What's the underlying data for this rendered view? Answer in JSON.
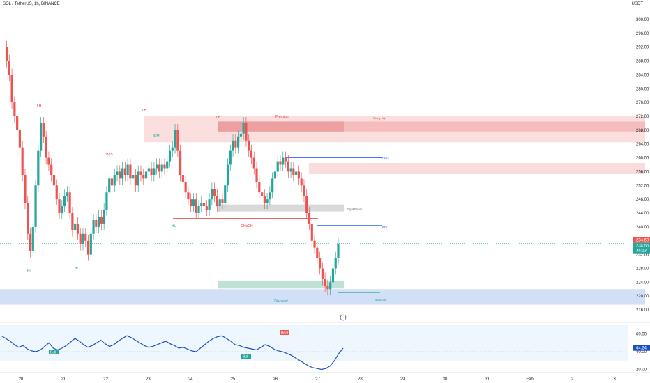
{
  "header": {
    "symbol": "SOL / TetherUS, 1h, BINANCE",
    "currency": "USDT"
  },
  "chart_data": {
    "type": "candlestick",
    "symbol": "SOL / TetherUS",
    "interval": "1h",
    "exchange": "BINANCE",
    "currency": "USDT",
    "ylim": [
      214,
      302
    ],
    "yticks": [
      "300.00",
      "296.00",
      "292.00",
      "288.00",
      "284.00",
      "280.00",
      "276.00",
      "272.00",
      "268.00",
      "264.00",
      "260.00",
      "256.00",
      "252.00",
      "248.00",
      "244.00",
      "240.00",
      "236.00",
      "232.00",
      "228.00",
      "224.00",
      "220.00",
      "216.00"
    ],
    "x_days": [
      "20",
      "21",
      "22",
      "23",
      "24",
      "25",
      "26",
      "27",
      "28",
      "29",
      "30",
      "31",
      "Feb",
      "2",
      "3"
    ],
    "x_range": [
      19.5,
      3.0
    ],
    "grid": false,
    "close_series": [
      [
        19.55,
        292
      ],
      [
        19.6,
        288
      ],
      [
        19.65,
        284
      ],
      [
        19.7,
        276
      ],
      [
        19.75,
        272
      ],
      [
        19.8,
        268
      ],
      [
        19.85,
        263
      ],
      [
        19.9,
        255
      ],
      [
        19.95,
        247
      ],
      [
        20.0,
        238
      ],
      [
        20.05,
        233
      ],
      [
        20.1,
        240
      ],
      [
        20.15,
        252
      ],
      [
        20.2,
        262
      ],
      [
        20.25,
        270
      ],
      [
        20.3,
        266
      ],
      [
        20.35,
        260
      ],
      [
        20.4,
        258
      ],
      [
        20.45,
        255
      ],
      [
        20.5,
        252
      ],
      [
        20.55,
        248
      ],
      [
        20.6,
        244
      ],
      [
        20.65,
        246
      ],
      [
        20.7,
        249
      ],
      [
        20.75,
        250
      ],
      [
        20.8,
        244
      ],
      [
        20.85,
        239
      ],
      [
        20.9,
        241
      ],
      [
        20.95,
        238
      ],
      [
        21.0,
        235
      ],
      [
        21.05,
        238
      ],
      [
        21.1,
        236
      ],
      [
        21.15,
        232
      ],
      [
        21.2,
        238
      ],
      [
        21.25,
        242
      ],
      [
        21.3,
        240
      ],
      [
        21.35,
        243
      ],
      [
        21.4,
        241
      ],
      [
        21.45,
        245
      ],
      [
        21.5,
        250
      ],
      [
        21.55,
        254
      ],
      [
        21.6,
        252
      ],
      [
        21.65,
        255
      ],
      [
        21.7,
        256
      ],
      [
        21.75,
        254
      ],
      [
        21.8,
        257
      ],
      [
        21.85,
        255
      ],
      [
        21.9,
        258
      ],
      [
        21.95,
        254
      ],
      [
        22.0,
        255
      ],
      [
        22.05,
        252
      ],
      [
        22.1,
        256
      ],
      [
        22.15,
        255
      ],
      [
        22.2,
        254
      ],
      [
        22.25,
        256
      ],
      [
        22.3,
        257
      ],
      [
        22.35,
        255
      ],
      [
        22.4,
        257
      ],
      [
        22.45,
        258
      ],
      [
        22.5,
        256
      ],
      [
        22.55,
        258
      ],
      [
        22.6,
        257
      ],
      [
        22.65,
        259
      ],
      [
        22.7,
        262
      ],
      [
        22.75,
        263
      ],
      [
        22.8,
        268
      ],
      [
        22.85,
        262
      ],
      [
        22.9,
        255
      ],
      [
        22.95,
        253
      ],
      [
        23.0,
        250
      ],
      [
        23.05,
        248
      ],
      [
        23.1,
        246
      ],
      [
        23.15,
        248
      ],
      [
        23.2,
        244
      ],
      [
        23.25,
        246
      ],
      [
        23.3,
        247
      ],
      [
        23.35,
        246
      ],
      [
        23.4,
        245
      ],
      [
        23.45,
        248
      ],
      [
        23.5,
        251
      ],
      [
        23.55,
        249
      ],
      [
        23.6,
        246
      ],
      [
        23.65,
        248
      ],
      [
        23.7,
        247
      ],
      [
        23.75,
        252
      ],
      [
        23.8,
        258
      ],
      [
        23.85,
        262
      ],
      [
        23.9,
        265
      ],
      [
        23.95,
        263
      ],
      [
        24.0,
        266
      ],
      [
        24.05,
        267
      ],
      [
        24.1,
        270
      ],
      [
        24.15,
        265
      ],
      [
        24.2,
        262
      ],
      [
        24.25,
        260
      ],
      [
        24.3,
        257
      ],
      [
        24.35,
        253
      ],
      [
        24.4,
        250
      ],
      [
        24.45,
        249
      ],
      [
        24.5,
        247
      ],
      [
        24.55,
        248
      ],
      [
        24.6,
        250
      ],
      [
        24.65,
        254
      ],
      [
        24.7,
        256
      ],
      [
        24.75,
        259
      ],
      [
        24.8,
        258
      ],
      [
        24.85,
        260
      ],
      [
        24.9,
        259
      ],
      [
        24.95,
        256
      ],
      [
        25.0,
        257
      ],
      [
        25.05,
        255
      ],
      [
        25.1,
        256
      ],
      [
        25.15,
        254
      ],
      [
        25.2,
        252
      ],
      [
        25.25,
        249
      ],
      [
        25.3,
        244
      ],
      [
        25.35,
        241
      ],
      [
        25.4,
        236
      ],
      [
        25.45,
        234
      ],
      [
        25.5,
        231
      ],
      [
        25.55,
        228
      ],
      [
        25.6,
        225
      ],
      [
        25.65,
        223
      ],
      [
        25.7,
        222
      ],
      [
        25.75,
        224
      ],
      [
        25.8,
        228
      ],
      [
        25.85,
        231
      ],
      [
        25.9,
        235
      ]
    ],
    "last_price": "234.60",
    "last_close": "234.55",
    "countdown": "36:13",
    "structure_labels": [
      "LH",
      "LH",
      "LH",
      "HL",
      "HL",
      "HL",
      "CHoCH",
      "Premium",
      "Equilibrium",
      "Discount",
      "Strong High",
      "Weak Low",
      "PDH",
      "PDL",
      "BoS",
      "IDM"
    ],
    "levels": {
      "strong_high": 271.5,
      "premium_zone": [
        264.5,
        272.0
      ],
      "equilibrium_zone": [
        244.5,
        246.5
      ],
      "discount_zone": [
        220.0,
        224.5
      ],
      "PDH": 260.0,
      "PDL": 240.5,
      "weak_low": 221.0,
      "choch_line": 242.5
    },
    "rsi": {
      "ylim": [
        18,
        70
      ],
      "yticks": [
        "60.00",
        "40.00",
        "20.00"
      ],
      "last_value": "44.24",
      "upper_band": 60,
      "lower_band": 40,
      "badges": [
        "Bull",
        "Bull",
        "Bear"
      ],
      "values": [
        58,
        55,
        52,
        48,
        45,
        47,
        43,
        41,
        40,
        42,
        46,
        50,
        44,
        42,
        44,
        47,
        51,
        55,
        52,
        48,
        45,
        47,
        50,
        53,
        49,
        46,
        48,
        52,
        55,
        58,
        56,
        53,
        50,
        47,
        45,
        46,
        48,
        50,
        52,
        49,
        47,
        44,
        45,
        43,
        41,
        40,
        44,
        48,
        52,
        55,
        57,
        58,
        55,
        52,
        48,
        47,
        45,
        44,
        43,
        42,
        45,
        48,
        46,
        43,
        41,
        40,
        38,
        36,
        33,
        30,
        27,
        24,
        22,
        21,
        20,
        21,
        24,
        30,
        38,
        44
      ]
    }
  }
}
